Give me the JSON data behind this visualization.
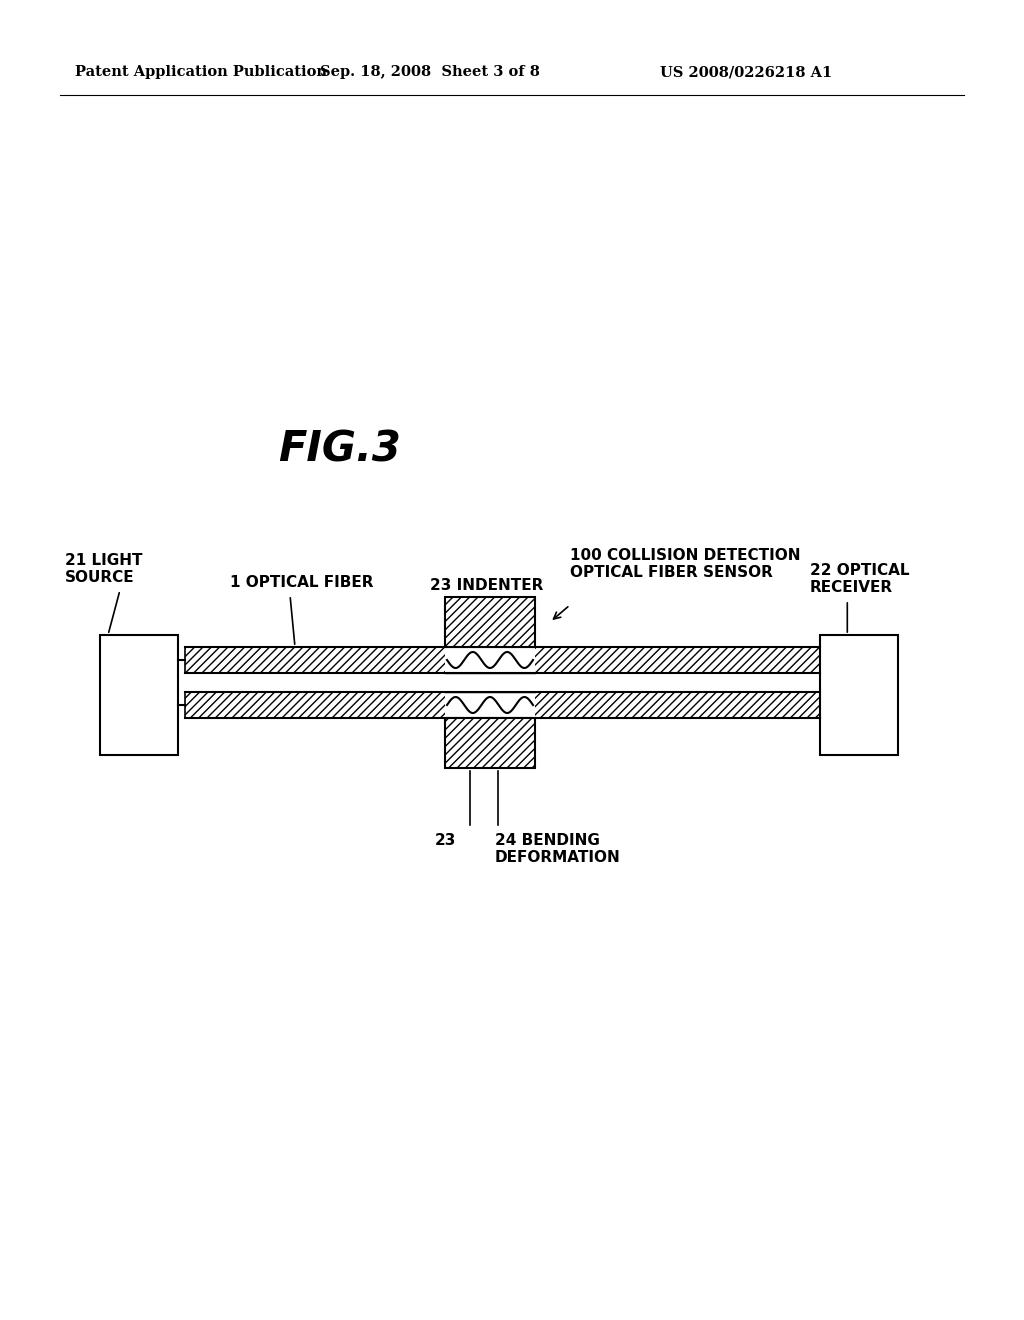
{
  "bg_color": "#ffffff",
  "header_left": "Patent Application Publication",
  "header_center": "Sep. 18, 2008  Sheet 3 of 8",
  "header_right": "US 2008/0226218 A1",
  "fig_label": "FIG.3",
  "label_light_source": "21 LIGHT\nSOURCE",
  "label_optical_fiber": "1 OPTICAL FIBER",
  "label_indenter": "23 INDENTER",
  "label_collision": "100 COLLISION DETECTION\nOPTICAL FIBER SENSOR",
  "label_receiver": "22 OPTICAL\nRECEIVER",
  "label_23": "23",
  "label_bending": "24 BENDING\nDEFORMATION"
}
